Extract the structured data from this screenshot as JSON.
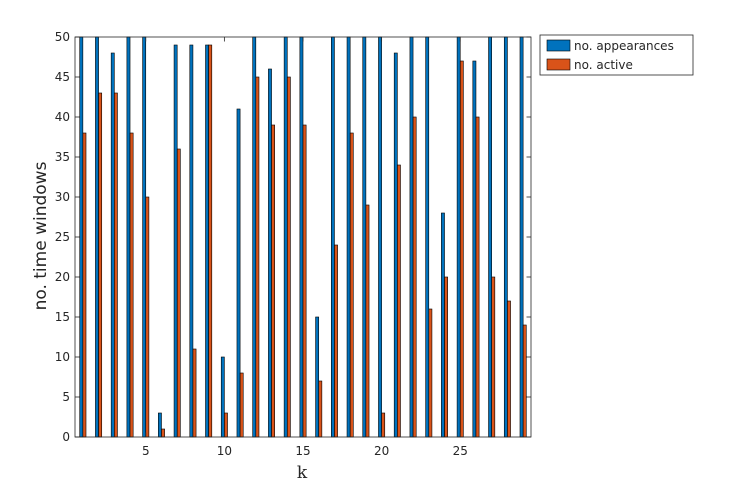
{
  "chart_data": {
    "type": "bar",
    "categories": [
      1,
      2,
      3,
      4,
      5,
      6,
      7,
      8,
      9,
      10,
      11,
      12,
      13,
      14,
      15,
      16,
      17,
      18,
      19,
      20,
      21,
      22,
      23,
      24,
      25,
      26,
      27,
      28,
      29
    ],
    "series": [
      {
        "name": "no. appearances",
        "color": "#0072BD",
        "values": [
          50,
          50,
          48,
          50,
          50,
          3,
          49,
          49,
          49,
          10,
          41,
          50,
          46,
          50,
          50,
          15,
          50,
          50,
          50,
          50,
          48,
          50,
          50,
          28,
          50,
          47,
          50,
          50,
          50
        ]
      },
      {
        "name": "no. active",
        "color": "#D95319",
        "values": [
          38,
          43,
          43,
          38,
          30,
          1,
          36,
          11,
          49,
          3,
          8,
          45,
          39,
          45,
          39,
          7,
          24,
          38,
          29,
          3,
          34,
          40,
          16,
          20,
          47,
          40,
          20,
          17,
          14
        ]
      }
    ],
    "xlabel": "k",
    "ylabel": "no. time windows",
    "xlim": [
      0.5,
      29.5
    ],
    "ylim": [
      0,
      50
    ],
    "xticks": [
      5,
      10,
      15,
      20,
      25
    ],
    "yticks": [
      0,
      5,
      10,
      15,
      20,
      25,
      30,
      35,
      40,
      45,
      50
    ],
    "grid": false,
    "legend_position": "outside top-right"
  }
}
